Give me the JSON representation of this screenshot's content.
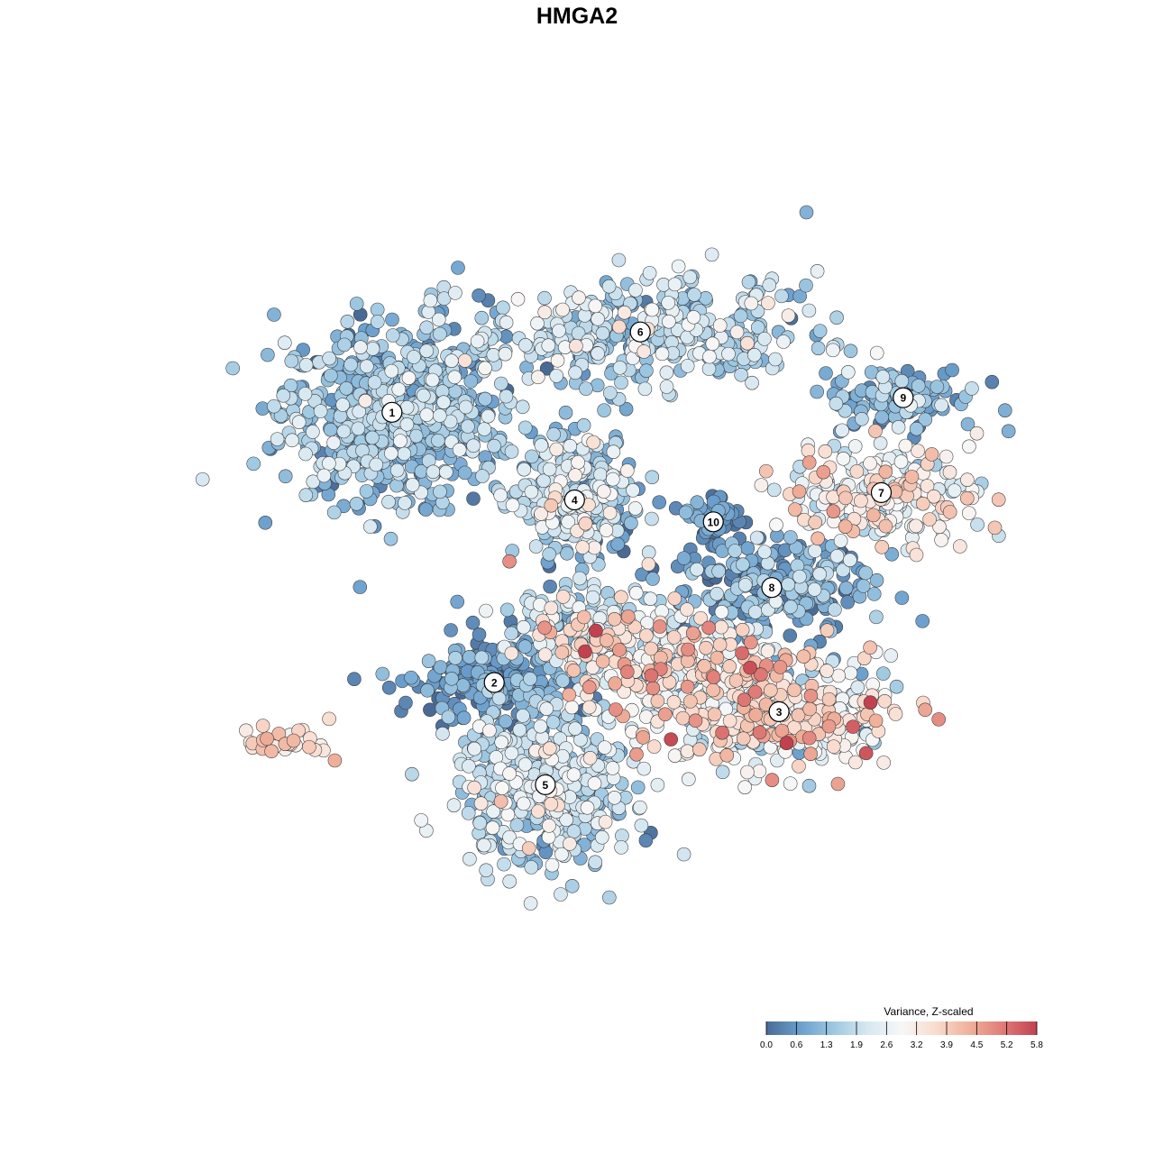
{
  "title": "HMGA2",
  "chart_data": {
    "type": "scatter",
    "title": "HMGA2",
    "xlabel": "",
    "ylabel": "",
    "xlim": [
      0,
      100
    ],
    "ylim": [
      0,
      100
    ],
    "grid": false,
    "legend": {
      "title": "Variance, Z-scaled",
      "placement": "bottom-right",
      "ticks": [
        "0.0",
        "0.6",
        "1.3",
        "1.9",
        "2.6",
        "3.2",
        "3.9",
        "4.5",
        "5.2",
        "5.8"
      ],
      "range": [
        0.0,
        5.8
      ],
      "colors": [
        "#4a6a96",
        "#6b9fcd",
        "#9ec8e2",
        "#d7e8f1",
        "#f7f7f7",
        "#f9dccf",
        "#f0b19b",
        "#e07b77",
        "#c2414f"
      ]
    },
    "clusters": [
      {
        "label": "1",
        "x": 8,
        "y": 67,
        "sx": 9,
        "sy": 7,
        "n": 650,
        "mean": 1.3,
        "sd": 0.6
      },
      {
        "label": "2",
        "x": 22,
        "y": 30,
        "sx": 6,
        "sy": 3.5,
        "n": 200,
        "mean": 0.6,
        "sd": 0.45
      },
      {
        "label": "3",
        "x": 61,
        "y": 26,
        "sx": 9,
        "sy": 4.5,
        "n": 420,
        "mean": 2.8,
        "sd": 1.1
      },
      {
        "label": "4",
        "x": 33,
        "y": 55,
        "sx": 5,
        "sy": 5,
        "n": 300,
        "mean": 1.6,
        "sd": 0.9
      },
      {
        "label": "5",
        "x": 29,
        "y": 16,
        "sx": 7,
        "sy": 6.5,
        "n": 480,
        "mean": 1.8,
        "sd": 0.7
      },
      {
        "label": "6",
        "x": 42,
        "y": 78,
        "sx": 14,
        "sy": 4.5,
        "n": 380,
        "mean": 1.7,
        "sd": 0.7
      },
      {
        "label": "7",
        "x": 75,
        "y": 56,
        "sx": 8,
        "sy": 4,
        "n": 220,
        "mean": 2.9,
        "sd": 0.8
      },
      {
        "label": "8",
        "x": 60,
        "y": 43,
        "sx": 8,
        "sy": 4,
        "n": 240,
        "mean": 0.9,
        "sd": 0.6
      },
      {
        "label": "9",
        "x": 78,
        "y": 69,
        "sx": 6,
        "sy": 2.5,
        "n": 120,
        "mean": 1.1,
        "sd": 0.6
      },
      {
        "label": "10",
        "x": 52,
        "y": 52,
        "sx": 2,
        "sy": 2.5,
        "n": 60,
        "mean": 0.5,
        "sd": 0.4
      }
    ],
    "extra_groups": [
      {
        "x": -6,
        "y": 22,
        "sx": 4,
        "sy": 1.3,
        "n": 28,
        "mean": 3.6,
        "sd": 0.5
      },
      {
        "x": 44,
        "y": 33,
        "sx": 10,
        "sy": 4,
        "n": 220,
        "mean": 3.1,
        "sd": 0.9
      },
      {
        "x": 35,
        "y": 38,
        "sx": 7,
        "sy": 3,
        "n": 140,
        "mean": 2.2,
        "sd": 0.9
      }
    ]
  }
}
